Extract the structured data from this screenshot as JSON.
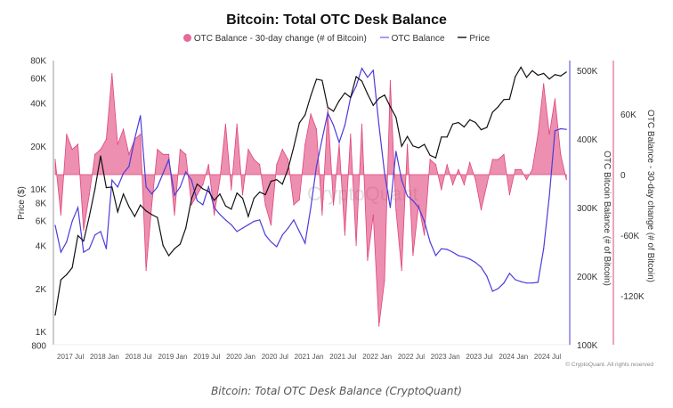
{
  "chart_data": {
    "type": "line",
    "title": "Bitcoin: Total OTC Desk Balance",
    "caption": "Bitcoin: Total OTC Desk Balance (CryptoQuant)",
    "copyright": "© CryptoQuant. All rights reserved",
    "watermark": "CryptoQuant",
    "x_start": "2017-04",
    "x_step": "month",
    "x_tick_labels": [
      "2017 Jul",
      "2018 Jan",
      "2018 Jul",
      "2019 Jan",
      "2019 Jul",
      "2020 Jan",
      "2020 Jul",
      "2021 Jan",
      "2021 Jul",
      "2022 Jan",
      "2022 Jul",
      "2023 Jan",
      "2023 Jul",
      "2024 Jan",
      "2024 Jul"
    ],
    "axes": {
      "left": {
        "label": "Price ($)",
        "scale": "log",
        "range": [
          800,
          100000
        ],
        "ticks": [
          800,
          1000,
          2000,
          4000,
          6000,
          8000,
          10000,
          20000,
          40000,
          60000,
          80000
        ],
        "tick_labels": [
          "800",
          "1K",
          "2K",
          "4K",
          "6K",
          "8K",
          "10K",
          "20K",
          "40K",
          "60K",
          "80K"
        ]
      },
      "right1": {
        "label": "OTC Bitcoin Balance (# of Bitcoin)",
        "range": [
          100000,
          515000
        ],
        "ticks": [
          100000,
          200000,
          300000,
          400000,
          500000
        ],
        "tick_labels": [
          "100K",
          "200K",
          "300K",
          "400K",
          "500K"
        ],
        "color": "#4b3bdc"
      },
      "right2": {
        "label": "OTC Balance - 30-day change (# of Bitcoin)",
        "range": [
          -175000,
          110000
        ],
        "ticks": [
          -120000,
          -60000,
          0,
          60000
        ],
        "tick_labels": [
          "-120K",
          "-60K",
          "0",
          "60K"
        ],
        "color": "#e0457b"
      }
    },
    "legend": [
      {
        "name": "OTC Balance - 30-day change (# of Bitcoin)",
        "color": "#e36a9a"
      },
      {
        "name": "OTC Balance",
        "color": "#a89cf0"
      },
      {
        "name": "Price",
        "color": "#555555"
      }
    ],
    "legend_position": "top-center",
    "grid": false,
    "series": [
      {
        "name": "Price",
        "axis": "left",
        "color": "#111111",
        "values": [
          1300,
          2300,
          2500,
          2800,
          4700,
          4300,
          6400,
          10000,
          17000,
          10200,
          10300,
          6900,
          9200,
          7500,
          6400,
          7700,
          7000,
          6600,
          6300,
          4000,
          3400,
          3800,
          4100,
          5300,
          8500,
          10800,
          10000,
          9600,
          8300,
          9200,
          7600,
          7200,
          9350,
          8600,
          6400,
          8600,
          9500,
          9100,
          11300,
          11600,
          10800,
          13800,
          19700,
          29000,
          33000,
          45000,
          58800,
          57700,
          37300,
          35000,
          41500,
          47100,
          43800,
          61300,
          57000,
          46300,
          38500,
          43200,
          45500,
          37700,
          31800,
          19900,
          23300,
          20000,
          19400,
          20500,
          17200,
          16500,
          23100,
          23100,
          28500,
          29200,
          27200,
          30500,
          29200,
          26000,
          27000,
          34500,
          37700,
          42300,
          42600,
          61200,
          71300,
          60600,
          67500,
          62700,
          64600,
          59000,
          63300,
          62000,
          66000
        ]
      },
      {
        "name": "OTC Balance",
        "axis": "right1",
        "color": "#4b3bdc",
        "values": [
          274000,
          235000,
          250000,
          280000,
          300000,
          235000,
          240000,
          260000,
          265000,
          240000,
          340000,
          330000,
          350000,
          360000,
          400000,
          434000,
          330000,
          320000,
          330000,
          350000,
          370000,
          318000,
          330000,
          352000,
          340000,
          310000,
          304000,
          330000,
          300000,
          290000,
          282000,
          275000,
          265000,
          270000,
          275000,
          280000,
          282000,
          260000,
          250000,
          243000,
          260000,
          270000,
          282000,
          265000,
          248000,
          300000,
          360000,
          400000,
          438000,
          420000,
          395000,
          420000,
          460000,
          477000,
          503000,
          490000,
          500000,
          420000,
          350000,
          300000,
          382000,
          340000,
          317000,
          310000,
          300000,
          280000,
          250000,
          230000,
          240000,
          239000,
          235000,
          230000,
          228000,
          225000,
          220000,
          213000,
          200000,
          178000,
          182000,
          190000,
          204000,
          195000,
          192000,
          190000,
          190000,
          191000,
          240000,
          317000,
          412000,
          415000,
          414000
        ]
      },
      {
        "name": "OTC Balance - 30-day change (# of Bitcoin)",
        "axis": "right2",
        "type": "area",
        "color": "#e0457b",
        "values": [
          15000,
          -40000,
          40000,
          25000,
          30000,
          -55000,
          -20000,
          20000,
          25000,
          35000,
          100000,
          30000,
          45000,
          20000,
          35000,
          40000,
          -95000,
          -30000,
          25000,
          20000,
          20000,
          -40000,
          25000,
          20000,
          -30000,
          -20000,
          -10000,
          10000,
          -40000,
          -5000,
          50000,
          -15000,
          50000,
          -20000,
          25000,
          15000,
          10000,
          -30000,
          -50000,
          10000,
          25000,
          15000,
          -30000,
          -25000,
          30000,
          60000,
          45000,
          -40000,
          65000,
          -30000,
          30000,
          -60000,
          40000,
          -70000,
          50000,
          -85000,
          -40000,
          -150000,
          -105000,
          93000,
          -35000,
          -95000,
          30000,
          -80000,
          -30000,
          -60000,
          15000,
          10000,
          -15000,
          10000,
          -10000,
          5000,
          -10000,
          12000,
          -5000,
          -35000,
          -10000,
          15000,
          15000,
          20000,
          -20000,
          5000,
          5000,
          -5000,
          5000,
          40000,
          90000,
          40000,
          75000,
          20000,
          -5000
        ]
      }
    ]
  }
}
